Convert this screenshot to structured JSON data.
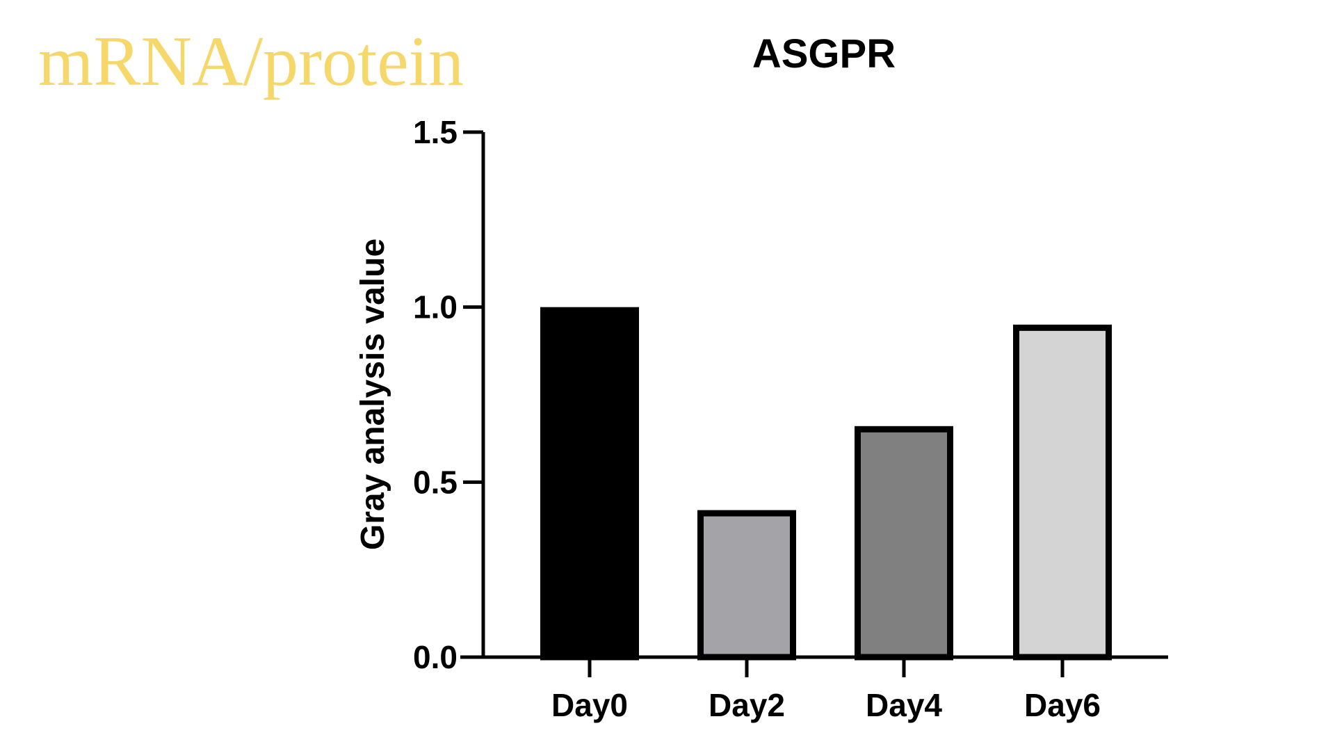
{
  "slide": {
    "heading": "mRNA/protein",
    "heading_color": "#f5d76a"
  },
  "chart_data": {
    "type": "bar",
    "title": "ASGPR",
    "xlabel": "",
    "ylabel": "Gray analysis value",
    "categories": [
      "Day0",
      "Day2",
      "Day4",
      "Day6"
    ],
    "values": [
      1.0,
      0.42,
      0.66,
      0.95
    ],
    "bar_colors": [
      "#000000",
      "#a3a3a8",
      "#808080",
      "#d4d4d4"
    ],
    "ylim": [
      0,
      1.5
    ],
    "yticks": [
      0.0,
      0.5,
      1.0,
      1.5
    ],
    "ytick_labels": [
      "0.0",
      "0.5",
      "1.0",
      "1.5"
    ],
    "grid": false,
    "legend": "none"
  }
}
